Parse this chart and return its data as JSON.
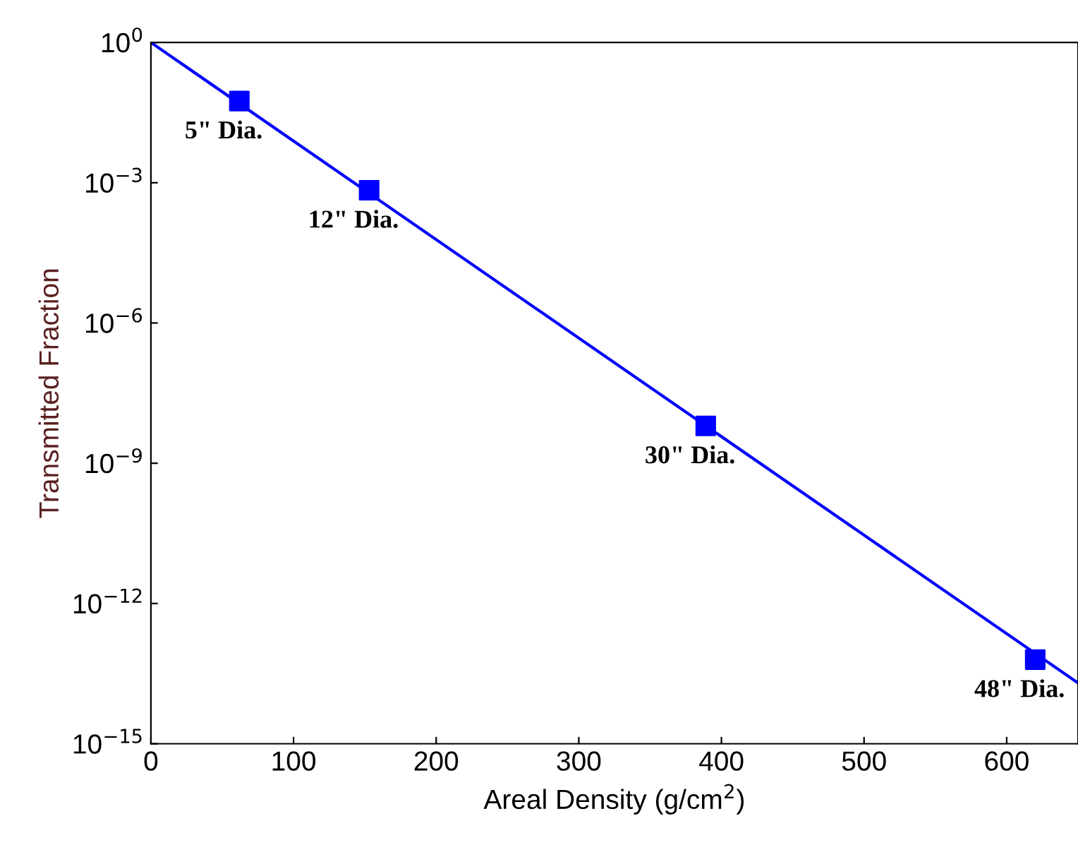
{
  "chart_data": {
    "type": "line",
    "xlabel": "Areal Density (g/cm$^{2}$)",
    "ylabel": "Transmitted Fraction",
    "log": "y",
    "series": [
      {
        "color": "#0000ff",
        "x": [
          0,
          650
        ],
        "values": [
          1,
          2e-14
        ],
        "marker": "none",
        "line_style": "solid"
      },
      {
        "type": "scatter",
        "color": "#0000ff",
        "x": [
          62,
          153,
          389,
          620
        ],
        "values": [
          0.056,
          0.00069,
          6.3e-09,
          6.3e-14
        ],
        "marker": "square"
      }
    ],
    "annotations": [
      {
        "text": "5\" Dia.",
        "x": 62,
        "y": 0.056
      },
      {
        "text": "12\" Dia.",
        "x": 153,
        "y": 0.00069
      },
      {
        "text": "30\" Dia.",
        "x": 389,
        "y": 6.3e-09
      },
      {
        "text": "48\" Dia.",
        "x": 620,
        "y": 6.3e-14
      }
    ],
    "xlim": [
      0,
      650
    ],
    "ylim": [
      1e-15,
      1
    ],
    "xticks": [
      0,
      100,
      200,
      300,
      400,
      500,
      600
    ],
    "yticks": [
      {
        "value": 1e-15,
        "label": "10$^{−15}$"
      },
      {
        "value": 1e-12,
        "label": "10$^{−12}$"
      },
      {
        "value": 1e-09,
        "label": "10$^{−9}$"
      },
      {
        "value": 1e-06,
        "label": "10$^{−6}$"
      },
      {
        "value": 0.001,
        "label": "10$^{−3}$"
      },
      {
        "value": 1,
        "label": "10$^{0}$"
      }
    ],
    "grid": false
  }
}
